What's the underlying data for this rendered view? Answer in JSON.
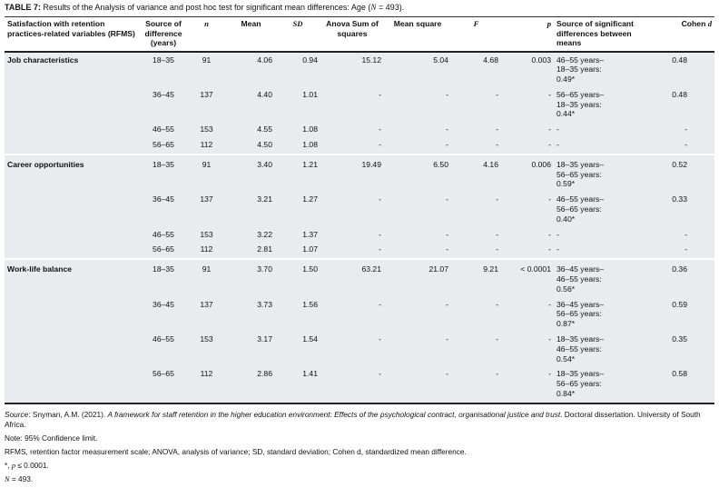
{
  "caption": {
    "label": "TABLE 7:",
    "text": "Results of the Analysis of variance and post hoc test for significant mean differences: Age (",
    "n_sym": "N",
    "n_rest": " = 493)."
  },
  "headers": {
    "variable": "Satisfaction with retention practices-related variables (RFMS)",
    "source": "Source of difference (years)",
    "n": "n",
    "mean": "Mean",
    "sd": "SD",
    "ss": "Anova Sum of squares",
    "ms": "Mean square",
    "f": "F",
    "p": "p",
    "sig": "Source of significant differences between means",
    "cohen": "Cohen",
    "cohen_d": "d"
  },
  "groups": [
    {
      "variable": "Job characteristics",
      "ss": "15.12",
      "ms": "5.04",
      "f": "4.68",
      "p": "0.003",
      "rows": [
        {
          "source": "18–35",
          "n": "91",
          "mean": "4.06",
          "sd": "0.94",
          "ss": "15.12",
          "ms": "5.04",
          "f": "4.68",
          "p": "0.003",
          "sig": "46–55 years–18–35 years: 0.49*",
          "d": "0.48"
        },
        {
          "source": "36–45",
          "n": "137",
          "mean": "4.40",
          "sd": "1.01",
          "ss": "-",
          "ms": "-",
          "f": "-",
          "p": "-",
          "sig": "56–65 years–18–35 years: 0.44*",
          "d": "0.48"
        },
        {
          "source": "46–55",
          "n": "153",
          "mean": "4.55",
          "sd": "1.08",
          "ss": "-",
          "ms": "-",
          "f": "-",
          "p": "-",
          "sig": "-",
          "d": "-"
        },
        {
          "source": "56–65",
          "n": "112",
          "mean": "4.50",
          "sd": "1.08",
          "ss": "-",
          "ms": "-",
          "f": "-",
          "p": "-",
          "sig": "-",
          "d": "-"
        }
      ]
    },
    {
      "variable": "Career opportunities",
      "rows": [
        {
          "source": "18–35",
          "n": "91",
          "mean": "3.40",
          "sd": "1.21",
          "ss": "19.49",
          "ms": "6.50",
          "f": "4.16",
          "p": "0.006",
          "sig": "18–35 years–56–65 years: 0.59*",
          "d": "0.52"
        },
        {
          "source": "36–45",
          "n": "137",
          "mean": "3.21",
          "sd": "1.27",
          "ss": "-",
          "ms": "-",
          "f": "-",
          "p": "-",
          "sig": "46–55 years–56–65 years: 0.40*",
          "d": "0.33"
        },
        {
          "source": "46–55",
          "n": "153",
          "mean": "3.22",
          "sd": "1.37",
          "ss": "-",
          "ms": "-",
          "f": "-",
          "p": "-",
          "sig": "-",
          "d": "-"
        },
        {
          "source": "56–65",
          "n": "112",
          "mean": "2.81",
          "sd": "1.07",
          "ss": "-",
          "ms": "-",
          "f": "-",
          "p": "-",
          "sig": "-",
          "d": "-"
        }
      ]
    },
    {
      "variable": "Work-life balance",
      "rows": [
        {
          "source": "18–35",
          "n": "91",
          "mean": "3.70",
          "sd": "1.50",
          "ss": "63.21",
          "ms": "21.07",
          "f": "9.21",
          "p": "< 0.0001",
          "sig": "36–45 years–46–55 years: 0.56*",
          "d": "0.36"
        },
        {
          "source": "36–45",
          "n": "137",
          "mean": "3.73",
          "sd": "1.56",
          "ss": "-",
          "ms": "-",
          "f": "-",
          "p": "-",
          "sig": "36–45 years–56–65 years: 0.87*",
          "d": "0.59"
        },
        {
          "source": "46–55",
          "n": "153",
          "mean": "3.17",
          "sd": "1.54",
          "ss": "-",
          "ms": "-",
          "f": "-",
          "p": "-",
          "sig": "18–35 years–46–55 years: 0.54*",
          "d": "0.35"
        },
        {
          "source": "56–65",
          "n": "112",
          "mean": "2.86",
          "sd": "1.41",
          "ss": "-",
          "ms": "-",
          "f": "-",
          "p": "-",
          "sig": "18–35 years–56–65 years: 0.84*",
          "d": "0.58"
        }
      ]
    }
  ],
  "notes": {
    "source_label": "Source",
    "source_pre": ": Snyman, A.M. (2021). ",
    "source_title": "A framework for staff retention in the higher education environment: Effects of the psychological contract, organisational justice and trust",
    "source_post": ". Doctoral dissertation. University of South Africa.",
    "note": "Note: 95% Confidence limit.",
    "abbrev": "RFMS, retention factor measurement scale; ANOVA, analysis of variance; SD, standard deviation; Cohen d, standardized mean difference.",
    "sig_star": "*, ",
    "sig_p": "p",
    "sig_rest": " ≤ 0.0001.",
    "n_sym": "N",
    "n_rest": " = 493."
  },
  "colors": {
    "body_bg": "#eaebef",
    "rule": "#222222"
  }
}
